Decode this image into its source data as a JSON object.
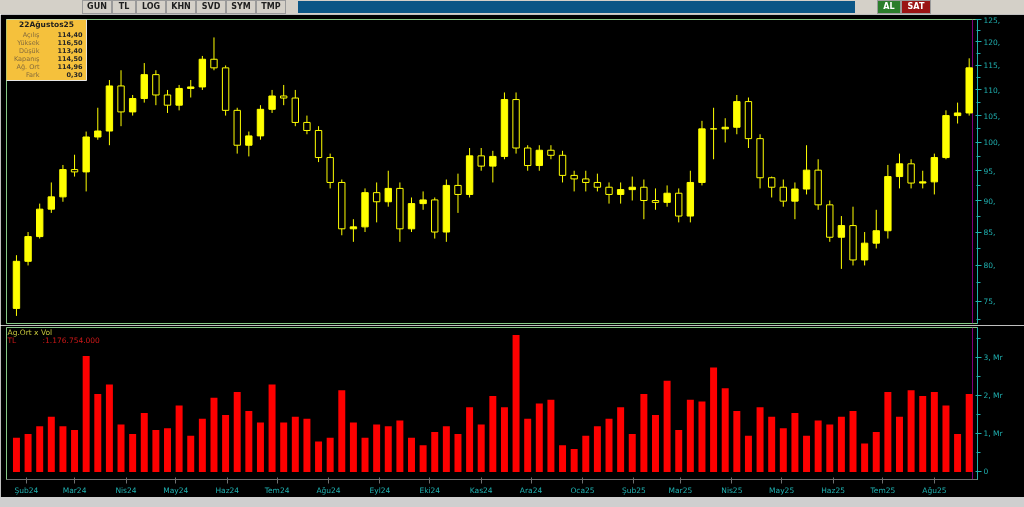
{
  "chart_data": [
    {
      "type": "other",
      "categories": [
        "GUN",
        "TL",
        "LOG",
        "KHN",
        "SVD",
        "SYM",
        "TMP",
        "AL",
        "SAT"
      ],
      "colors": [
        "#d4d0c8",
        "#d4d0c8",
        "#d4d0c8",
        "#d4d0c8",
        "#d4d0c8",
        "#d4d0c8",
        "#d4d0c8",
        "#2b7d2b",
        "#9a1414"
      ]
    },
    {
      "type": "other",
      "title": "22Ağustos25",
      "categories": [
        "Açılış",
        "Yüksek",
        "Düşük",
        "Kapanış",
        "Ağ. Ort",
        "Fark"
      ],
      "annotations": [
        "114,40",
        "116,50",
        "113,40",
        "114,50",
        "114,96",
        "0,30"
      ]
    },
    {
      "type": "candlestick",
      "color": "#ffff00",
      "log": true,
      "tick_labels": "y",
      "x": [
        "2024-01-26",
        "2024-02-02",
        "2024-02-09",
        "2024-02-16",
        "2024-02-23",
        "2024-03-01",
        "2024-03-08",
        "2024-03-15",
        "2024-03-22",
        "2024-03-29",
        "2024-04-05",
        "2024-04-12",
        "2024-04-19",
        "2024-04-26",
        "2024-05-03",
        "2024-05-10",
        "2024-05-17",
        "2024-05-24",
        "2024-05-31",
        "2024-06-07",
        "2024-06-14",
        "2024-06-21",
        "2024-06-28",
        "2024-07-05",
        "2024-07-12",
        "2024-07-19",
        "2024-07-26",
        "2024-08-02",
        "2024-08-09",
        "2024-08-16",
        "2024-08-23",
        "2024-08-30",
        "2024-09-06",
        "2024-09-13",
        "2024-09-20",
        "2024-09-27",
        "2024-10-04",
        "2024-10-11",
        "2024-10-18",
        "2024-10-25",
        "2024-11-01",
        "2024-11-08",
        "2024-11-15",
        "2024-11-22",
        "2024-11-29",
        "2024-12-06",
        "2024-12-13",
        "2024-12-20",
        "2024-12-27",
        "2025-01-03",
        "2025-01-10",
        "2025-01-17",
        "2025-01-24",
        "2025-01-31",
        "2025-02-07",
        "2025-02-14",
        "2025-02-21",
        "2025-02-28",
        "2025-03-07",
        "2025-03-14",
        "2025-03-21",
        "2025-03-28",
        "2025-04-04",
        "2025-04-11",
        "2025-04-18",
        "2025-04-25",
        "2025-05-02",
        "2025-05-09",
        "2025-05-16",
        "2025-05-23",
        "2025-05-30",
        "2025-06-06",
        "2025-06-13",
        "2025-06-20",
        "2025-06-27",
        "2025-07-04",
        "2025-07-11",
        "2025-07-18",
        "2025-07-25",
        "2025-08-01",
        "2025-08-08",
        "2025-08-15",
        "2025-08-22"
      ],
      "ohlc": [
        [
          74,
          81.5,
          73,
          80.6
        ],
        [
          80.6,
          85,
          80,
          84.3
        ],
        [
          84.3,
          89.5,
          84,
          88.6
        ],
        [
          88.6,
          93,
          88,
          90.6
        ],
        [
          90.6,
          96,
          89.8,
          95.2
        ],
        [
          95.2,
          97.8,
          94,
          94.8
        ],
        [
          94.8,
          102,
          91.5,
          101
        ],
        [
          101,
          106.5,
          100.5,
          102.1
        ],
        [
          102.1,
          112,
          99.5,
          110.8
        ],
        [
          110.8,
          114,
          103,
          105.7
        ],
        [
          105.7,
          109,
          105,
          108.3
        ],
        [
          108.3,
          115.5,
          107.5,
          113.1
        ],
        [
          113.1,
          114,
          107,
          109
        ],
        [
          109,
          110,
          105.5,
          107
        ],
        [
          107,
          111,
          106,
          110.3
        ],
        [
          110.3,
          112,
          108.5,
          110.6
        ],
        [
          110.6,
          117,
          110,
          116.3
        ],
        [
          116.3,
          121,
          114,
          114.5
        ],
        [
          114.5,
          115,
          105,
          106
        ],
        [
          106,
          106.5,
          98,
          99.5
        ],
        [
          99.5,
          102,
          97.5,
          101.2
        ],
        [
          101.2,
          107,
          100.5,
          106.2
        ],
        [
          106.2,
          110,
          105.5,
          108.8
        ],
        [
          108.8,
          111,
          107,
          108.4
        ],
        [
          108.4,
          110,
          103,
          103.7
        ],
        [
          103.7,
          105,
          101.5,
          102.2
        ],
        [
          102.2,
          103,
          96.5,
          97.3
        ],
        [
          97.3,
          98,
          92,
          93
        ],
        [
          93,
          93.5,
          84.5,
          85.5
        ],
        [
          85.5,
          87,
          83.5,
          85.8
        ],
        [
          85.8,
          92,
          85,
          91.3
        ],
        [
          91.3,
          93,
          86.5,
          89.8
        ],
        [
          89.8,
          95,
          89,
          92
        ],
        [
          92,
          93,
          83.5,
          85.5
        ],
        [
          85.5,
          90.5,
          85,
          89.5
        ],
        [
          89.5,
          91.5,
          88.5,
          90.1
        ],
        [
          90.1,
          90.5,
          84,
          85
        ],
        [
          85,
          93.5,
          83.5,
          92.5
        ],
        [
          92.5,
          94.5,
          88,
          91
        ],
        [
          91,
          99,
          90.5,
          97.6
        ],
        [
          97.6,
          99,
          95,
          95.8
        ],
        [
          95.8,
          98.5,
          93,
          97.5
        ],
        [
          97.5,
          109.5,
          97,
          108.1
        ],
        [
          108.1,
          109.5,
          98,
          99
        ],
        [
          99,
          99.5,
          95,
          95.9
        ],
        [
          95.9,
          99.5,
          95,
          98.6
        ],
        [
          98.6,
          99.5,
          97,
          97.7
        ],
        [
          97.7,
          98.5,
          93,
          94.2
        ],
        [
          94.2,
          95,
          91.5,
          93.6
        ],
        [
          93.6,
          95,
          91.5,
          93
        ],
        [
          93,
          94.5,
          91.5,
          92.2
        ],
        [
          92.2,
          93,
          89.5,
          91
        ],
        [
          91,
          93,
          89.5,
          91.8
        ],
        [
          91.8,
          94,
          90,
          92.2
        ],
        [
          92.2,
          93.5,
          87,
          90
        ],
        [
          90,
          92,
          88.5,
          89.7
        ],
        [
          89.7,
          92.5,
          89,
          91.2
        ],
        [
          91.2,
          92,
          86.5,
          87.5
        ],
        [
          87.5,
          95,
          86.5,
          93
        ],
        [
          93,
          104,
          92.5,
          102.5
        ],
        [
          102.5,
          106.5,
          97,
          102.5
        ],
        [
          102.5,
          104.5,
          100,
          102.8
        ],
        [
          102.8,
          109,
          101.5,
          107.7
        ],
        [
          107.7,
          108.5,
          99,
          100.7
        ],
        [
          100.7,
          101.5,
          92,
          93.8
        ],
        [
          93.8,
          94,
          90.5,
          92.2
        ],
        [
          92.2,
          93.5,
          89,
          89.9
        ],
        [
          89.9,
          93,
          87,
          91.9
        ],
        [
          91.9,
          99.5,
          91,
          95.1
        ],
        [
          95.1,
          97,
          88.5,
          89.3
        ],
        [
          89.3,
          90,
          83.5,
          84.2
        ],
        [
          84.2,
          87.5,
          79.5,
          86
        ],
        [
          86,
          89,
          80,
          80.8
        ],
        [
          80.8,
          85,
          80,
          83.3
        ],
        [
          83.3,
          88.5,
          82.5,
          85.2
        ],
        [
          85.2,
          96,
          84,
          94
        ],
        [
          94,
          98,
          92,
          96.2
        ],
        [
          96.2,
          97,
          92,
          92.9
        ],
        [
          92.9,
          95,
          92,
          93.1
        ],
        [
          93.1,
          98,
          91,
          97.3
        ],
        [
          97.3,
          106,
          97,
          105
        ],
        [
          105,
          107.5,
          103.5,
          105.5
        ],
        [
          105.5,
          116.5,
          105,
          114.5
        ]
      ],
      "xlim": [
        "2024-01-20",
        "2025-08-27"
      ],
      "ylim": [
        72,
        125
      ],
      "yticks": [
        {
          "value": 72.5,
          "label": null
        },
        {
          "value": 75,
          "label": "75,"
        },
        {
          "value": 77.5,
          "label": null
        },
        {
          "value": 80,
          "label": "80,"
        },
        {
          "value": 82.5,
          "label": null
        },
        {
          "value": 85,
          "label": "85,"
        },
        {
          "value": 87.5,
          "label": null
        },
        {
          "value": 90,
          "label": "90,"
        },
        {
          "value": 92.5,
          "label": null
        },
        {
          "value": 95,
          "label": "95,"
        },
        {
          "value": 97.5,
          "label": null
        },
        {
          "value": 100,
          "label": "100,"
        },
        {
          "value": 102.5,
          "label": null
        },
        {
          "value": 105,
          "label": "105,"
        },
        {
          "value": 107.5,
          "label": null
        },
        {
          "value": 110,
          "label": "110,"
        },
        {
          "value": 112.5,
          "label": null
        },
        {
          "value": 115,
          "label": "115,"
        },
        {
          "value": 117.5,
          "label": null
        },
        {
          "value": 120,
          "label": "120,"
        },
        {
          "value": 122.5,
          "label": null
        },
        {
          "value": 125,
          "label": "125,"
        }
      ],
      "ref_lines": [
        {
          "axis": "x",
          "value": "2025-08-24",
          "color": "#800080"
        }
      ]
    },
    {
      "type": "bar",
      "title": "Ag.Ort x Vol",
      "annotations": [
        "TL",
        ":1.176.754.000"
      ],
      "color": "#ff0000",
      "x": [
        "2024-01-26",
        "2024-02-02",
        "2024-02-09",
        "2024-02-16",
        "2024-02-23",
        "2024-03-01",
        "2024-03-08",
        "2024-03-15",
        "2024-03-22",
        "2024-03-29",
        "2024-04-05",
        "2024-04-12",
        "2024-04-19",
        "2024-04-26",
        "2024-05-03",
        "2024-05-10",
        "2024-05-17",
        "2024-05-24",
        "2024-05-31",
        "2024-06-07",
        "2024-06-14",
        "2024-06-21",
        "2024-06-28",
        "2024-07-05",
        "2024-07-12",
        "2024-07-19",
        "2024-07-26",
        "2024-08-02",
        "2024-08-09",
        "2024-08-16",
        "2024-08-23",
        "2024-08-30",
        "2024-09-06",
        "2024-09-13",
        "2024-09-20",
        "2024-09-27",
        "2024-10-04",
        "2024-10-11",
        "2024-10-18",
        "2024-10-25",
        "2024-11-01",
        "2024-11-08",
        "2024-11-15",
        "2024-11-22",
        "2024-11-29",
        "2024-12-06",
        "2024-12-13",
        "2024-12-20",
        "2024-12-27",
        "2025-01-03",
        "2025-01-10",
        "2025-01-17",
        "2025-01-24",
        "2025-01-31",
        "2025-02-07",
        "2025-02-14",
        "2025-02-21",
        "2025-02-28",
        "2025-03-07",
        "2025-03-14",
        "2025-03-21",
        "2025-03-28",
        "2025-04-04",
        "2025-04-11",
        "2025-04-18",
        "2025-04-25",
        "2025-05-02",
        "2025-05-09",
        "2025-05-16",
        "2025-05-23",
        "2025-05-30",
        "2025-06-06",
        "2025-06-13",
        "2025-06-20",
        "2025-06-27",
        "2025-07-04",
        "2025-07-11",
        "2025-07-18",
        "2025-07-25",
        "2025-08-01",
        "2025-08-08",
        "2025-08-15",
        "2025-08-22"
      ],
      "values": [
        0.9,
        1.0,
        1.2,
        1.45,
        1.2,
        1.1,
        3.05,
        2.05,
        2.3,
        1.25,
        1.0,
        1.55,
        1.1,
        1.15,
        1.75,
        0.95,
        1.4,
        1.95,
        1.5,
        2.1,
        1.6,
        1.3,
        2.3,
        1.3,
        1.45,
        1.4,
        0.8,
        0.9,
        2.15,
        1.3,
        0.9,
        1.25,
        1.2,
        1.35,
        0.9,
        0.7,
        1.05,
        1.2,
        1.0,
        1.7,
        1.25,
        2.0,
        1.7,
        3.6,
        1.4,
        1.8,
        1.9,
        0.7,
        0.6,
        0.95,
        1.2,
        1.4,
        1.7,
        1.0,
        2.05,
        1.5,
        2.4,
        1.1,
        1.9,
        1.85,
        2.75,
        2.2,
        1.6,
        0.95,
        1.7,
        1.45,
        1.15,
        1.55,
        0.95,
        1.35,
        1.25,
        1.45,
        1.6,
        0.75,
        1.05,
        2.1,
        1.45,
        2.15,
        2.0,
        2.1,
        1.75,
        1.0,
        2.05
      ],
      "xlim": [
        "2024-01-20",
        "2025-08-27"
      ],
      "ylim": [
        -0.2,
        3.8
      ],
      "xticks": [
        {
          "value": "2024-02-01",
          "label": "Şub24"
        },
        {
          "value": "2024-03-01",
          "label": "Mar24"
        },
        {
          "value": "2024-04-01",
          "label": "Nis24"
        },
        {
          "value": "2024-05-01",
          "label": "May24"
        },
        {
          "value": "2024-06-01",
          "label": "Haz24"
        },
        {
          "value": "2024-07-01",
          "label": "Tem24"
        },
        {
          "value": "2024-08-01",
          "label": "Ağu24"
        },
        {
          "value": "2024-09-01",
          "label": "Eyl24"
        },
        {
          "value": "2024-10-01",
          "label": "Eki24"
        },
        {
          "value": "2024-11-01",
          "label": "Kas24"
        },
        {
          "value": "2024-12-01",
          "label": "Ara24"
        },
        {
          "value": "2025-01-01",
          "label": "Oca25"
        },
        {
          "value": "2025-02-01",
          "label": "Şub25"
        },
        {
          "value": "2025-03-01",
          "label": "Mar25"
        },
        {
          "value": "2025-04-01",
          "label": "Nis25"
        },
        {
          "value": "2025-05-01",
          "label": "May25"
        },
        {
          "value": "2025-06-01",
          "label": "Haz25"
        },
        {
          "value": "2025-07-01",
          "label": "Tem25"
        },
        {
          "value": "2025-08-01",
          "label": "Ağu25"
        }
      ],
      "yticks": [
        0,
        {
          "value": 0.5,
          "label": null
        },
        {
          "value": 1,
          "label": "1, Mr"
        },
        {
          "value": 1.5,
          "label": null
        },
        {
          "value": 2,
          "label": "2, Mr"
        },
        {
          "value": 2.5,
          "label": null
        },
        {
          "value": 3,
          "label": "3, Mr"
        },
        {
          "value": 3.5,
          "label": null
        }
      ],
      "ref_lines": [
        {
          "axis": "x",
          "value": "2025-08-24",
          "color": "#800080"
        }
      ]
    }
  ]
}
